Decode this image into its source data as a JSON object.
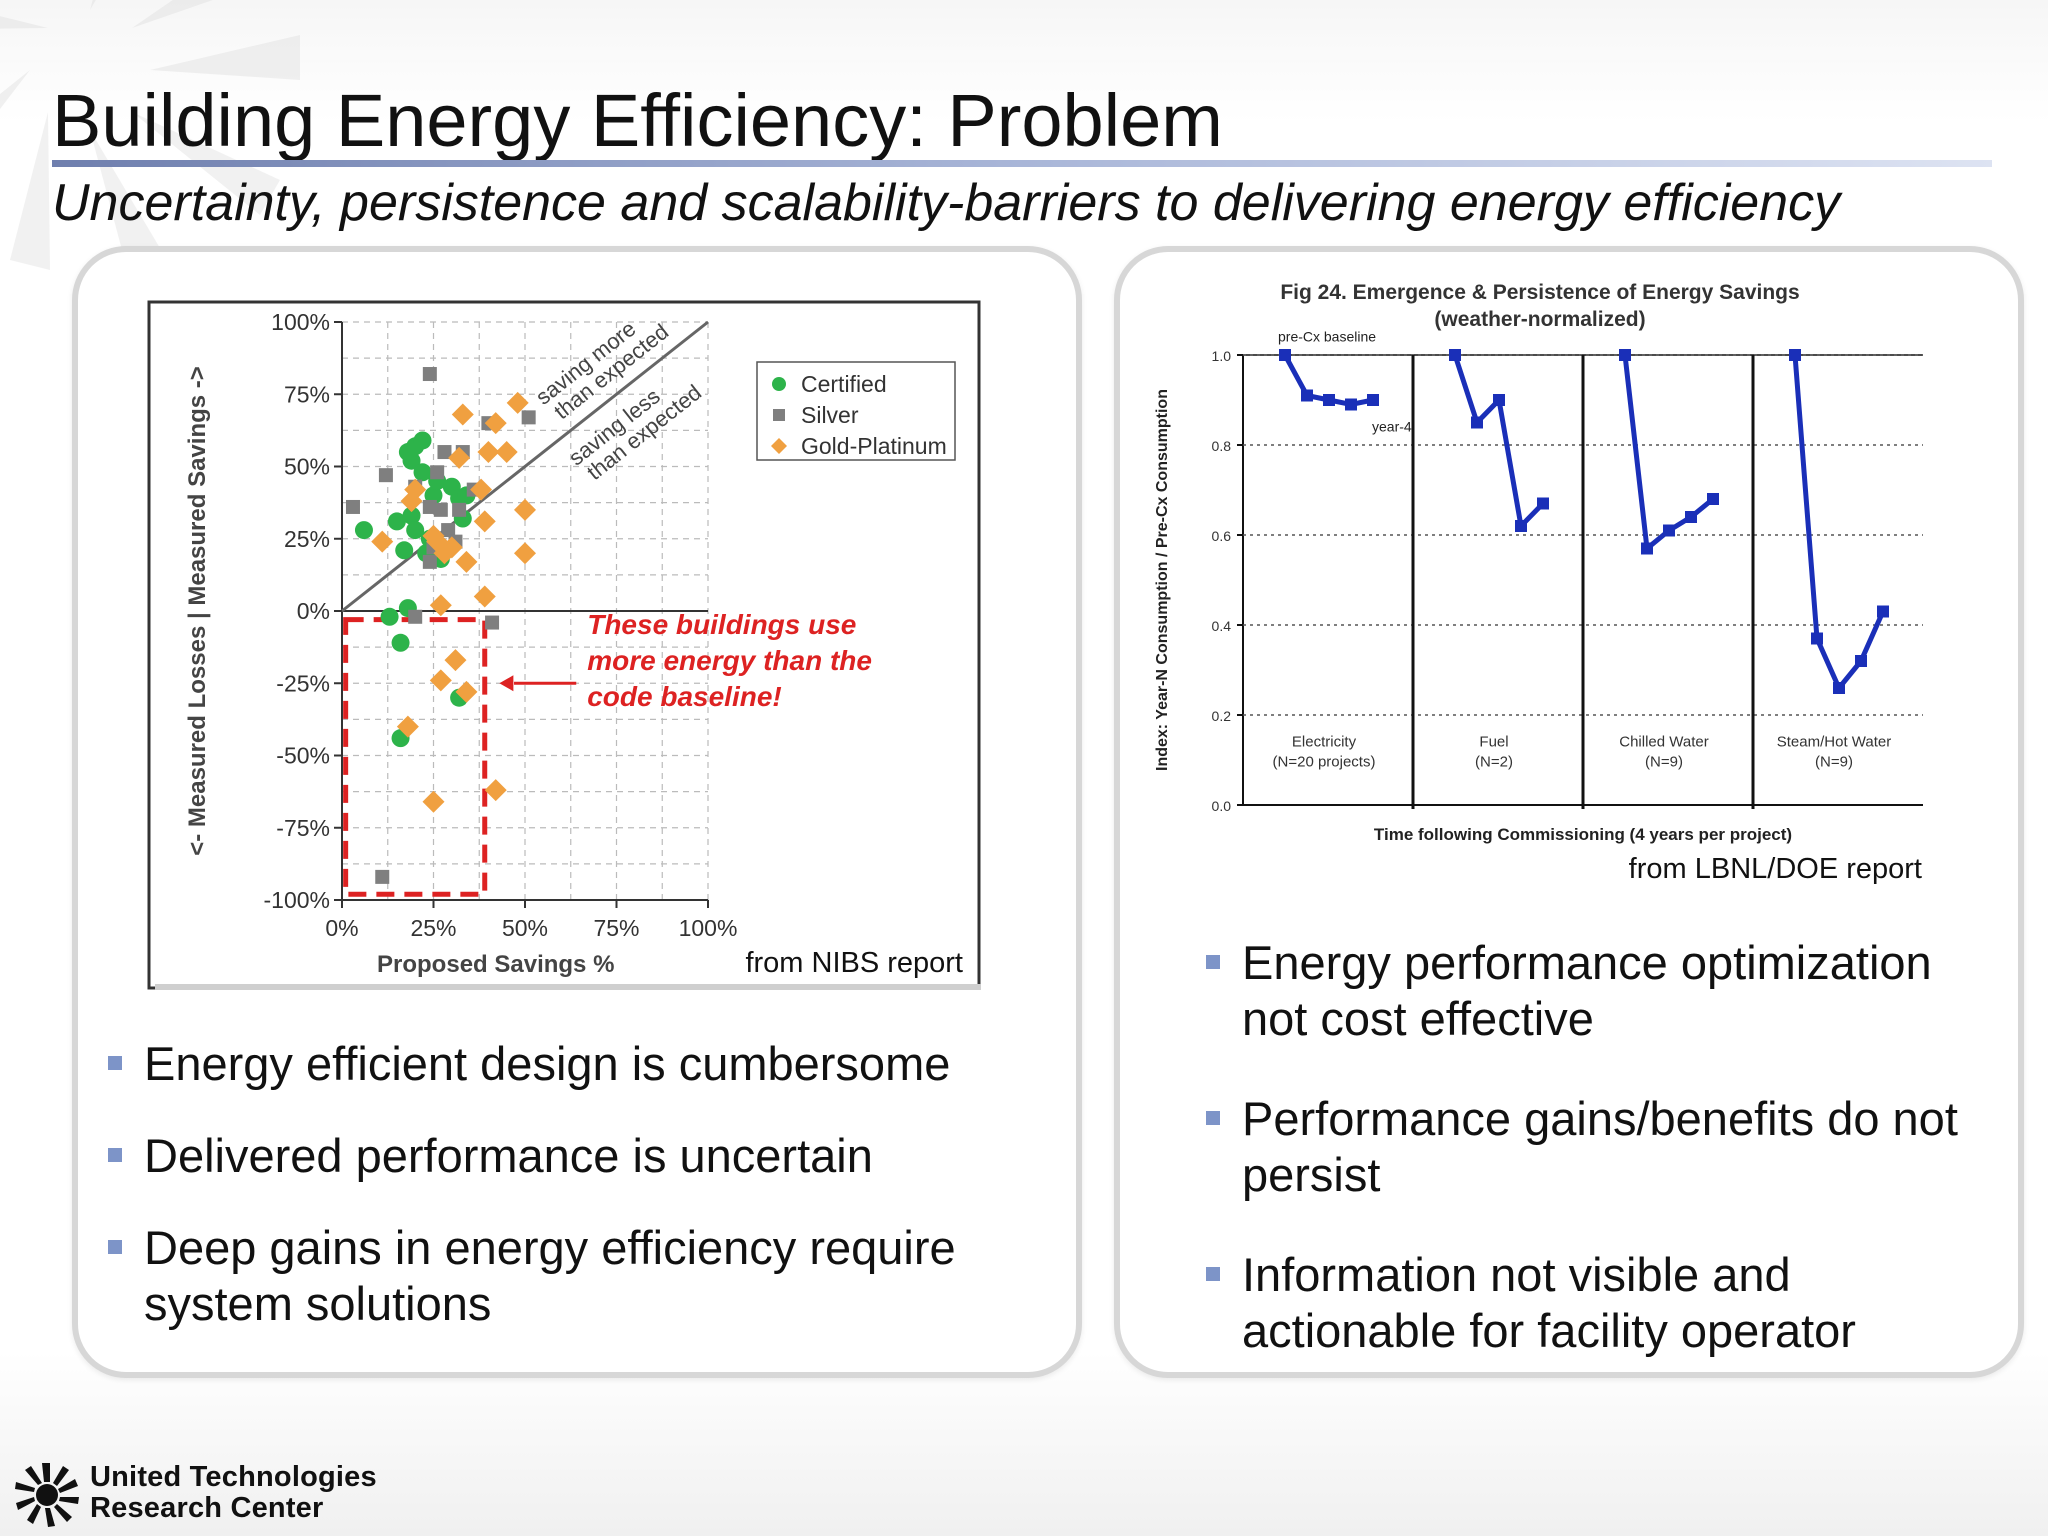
{
  "slide": {
    "title": "Building Energy Efficiency: Problem",
    "subtitle": "Uncertainty, persistence and scalability-barriers to delivering energy efficiency"
  },
  "left_panel": {
    "source": "from NIBS report",
    "bullets": [
      "Energy efficient design is cumbersome",
      "Delivered performance is uncertain",
      "Deep gains in energy efficiency require system solutions"
    ]
  },
  "right_panel": {
    "source": "from LBNL/DOE report",
    "bullets": [
      "Energy performance optimization not cost effective",
      "Performance gains/benefits do not persist",
      "Information not visible and actionable for facility operator"
    ]
  },
  "footer": {
    "logo_line1": "United Technologies",
    "logo_line2": "Research Center"
  },
  "chart_data": [
    {
      "type": "scatter",
      "xlabel": "Proposed Savings %",
      "ylabel": "<- Measured Losses | Measured Savings ->",
      "xlim": [
        0,
        100
      ],
      "ylim": [
        -100,
        100
      ],
      "x_ticks": [
        "0%",
        "25%",
        "50%",
        "75%",
        "100%"
      ],
      "y_ticks": [
        "100%",
        "75%",
        "50%",
        "25%",
        "0%",
        "-25%",
        "-50%",
        "-75%",
        "-100%"
      ],
      "grid": true,
      "legend_position": "top-right",
      "diagonal_labels": [
        "saving more",
        "than expected",
        "saving less",
        "than expected"
      ],
      "callout": [
        "These buildings use",
        "more energy than the",
        "code baseline!"
      ],
      "colors": {
        "certified": "#2db34a",
        "silver": "#7f7f7f",
        "gold": "#f0a040",
        "callout": "#dd2222"
      },
      "series": [
        {
          "name": "Certified",
          "marker": "circle",
          "points": [
            [
              6,
              28
            ],
            [
              15,
              31
            ],
            [
              18,
              55
            ],
            [
              19,
              52
            ],
            [
              19,
              33
            ],
            [
              20,
              28
            ],
            [
              20,
              57
            ],
            [
              22,
              59
            ],
            [
              22,
              48
            ],
            [
              23,
              20
            ],
            [
              24,
              25
            ],
            [
              25,
              40
            ],
            [
              26,
              45
            ],
            [
              27,
              18
            ],
            [
              30,
              43
            ],
            [
              32,
              39
            ],
            [
              33,
              32
            ],
            [
              34,
              40
            ],
            [
              13,
              -2
            ],
            [
              16,
              -11
            ],
            [
              18,
              1
            ],
            [
              32,
              -30
            ],
            [
              16,
              -44
            ],
            [
              17,
              21
            ]
          ]
        },
        {
          "name": "Silver",
          "marker": "square",
          "points": [
            [
              3,
              36
            ],
            [
              12,
              47
            ],
            [
              20,
              43
            ],
            [
              24,
              36
            ],
            [
              24,
              17
            ],
            [
              25,
              22
            ],
            [
              26,
              48
            ],
            [
              27,
              35
            ],
            [
              28,
              55
            ],
            [
              29,
              28
            ],
            [
              31,
              24
            ],
            [
              32,
              35
            ],
            [
              33,
              55
            ],
            [
              36,
              42
            ],
            [
              40,
              65
            ],
            [
              51,
              67
            ],
            [
              24,
              82
            ],
            [
              20,
              -2
            ],
            [
              41,
              -4
            ],
            [
              11,
              -92
            ]
          ]
        },
        {
          "name": "Gold-Platinum",
          "marker": "diamond",
          "points": [
            [
              11,
              24
            ],
            [
              19,
              38
            ],
            [
              20,
              42
            ],
            [
              25,
              26
            ],
            [
              26,
              24
            ],
            [
              28,
              20
            ],
            [
              30,
              22
            ],
            [
              32,
              53
            ],
            [
              33,
              68
            ],
            [
              34,
              17
            ],
            [
              38,
              42
            ],
            [
              39,
              31
            ],
            [
              40,
              55
            ],
            [
              42,
              65
            ],
            [
              45,
              55
            ],
            [
              48,
              72
            ],
            [
              50,
              35
            ],
            [
              50,
              20
            ],
            [
              27,
              2
            ],
            [
              39,
              5
            ],
            [
              31,
              -17
            ],
            [
              27,
              -24
            ],
            [
              34,
              -28
            ],
            [
              18,
              -40
            ],
            [
              25,
              -66
            ],
            [
              42,
              -62
            ]
          ]
        }
      ]
    },
    {
      "type": "line",
      "title": "Fig 24. Emergence & Persistence of Energy Savings",
      "subtitle": "(weather-normalized)",
      "xlabel": "Time following Commissioning (4 years per project)",
      "ylabel": "Index:  Year-N Consumption / Pre-Cx Consumption",
      "ylim": [
        0.0,
        1.0
      ],
      "y_ticks": [
        "0.0",
        "0.2",
        "0.4",
        "0.6",
        "0.8",
        "1.0"
      ],
      "annotations": [
        "pre-Cx baseline",
        "year-4"
      ],
      "line_color": "#1a2fb8",
      "series": [
        {
          "name": "Electricity",
          "label_lines": [
            "Electricity",
            "(N=20 projects)"
          ],
          "values": [
            1.0,
            0.91,
            0.9,
            0.89,
            0.9
          ]
        },
        {
          "name": "Fuel",
          "label_lines": [
            "Fuel",
            "(N=2)"
          ],
          "values": [
            1.0,
            0.85,
            0.9,
            0.62,
            0.67
          ]
        },
        {
          "name": "Chilled Water",
          "label_lines": [
            "Chilled Water",
            "(N=9)"
          ],
          "values": [
            1.0,
            0.57,
            0.61,
            0.64,
            0.68
          ]
        },
        {
          "name": "Steam/Hot Water",
          "label_lines": [
            "Steam/Hot Water",
            "(N=9)"
          ],
          "values": [
            1.0,
            0.37,
            0.26,
            0.32,
            0.43
          ]
        }
      ]
    }
  ]
}
